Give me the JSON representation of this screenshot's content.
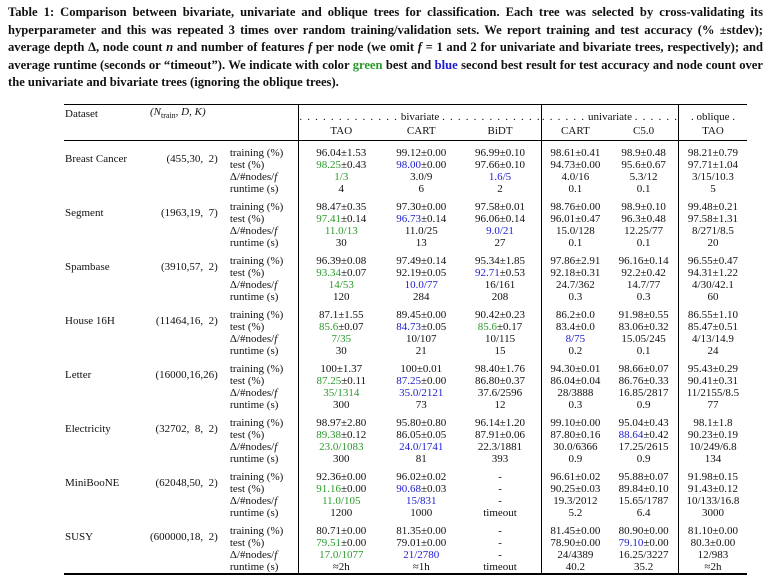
{
  "caption": {
    "parts": [
      "Table 1: Comparison between bivariate, univariate and oblique trees for classification. Each tree was selected by cross-validating its hyperparameter and this was repeated 3 times over random training/validation sets. We report training and test accuracy (% ±stdev); average depth Δ, node count ",
      "n",
      " and number of features ",
      "f",
      " per node (we omit ",
      "f",
      " = 1 and 2 for univariate and bivariate trees, respectively); and average runtime (seconds or “timeout”). We indicate with color ",
      "green",
      " best and ",
      "blue",
      " second best result for test accuracy and node count over the univariate and bivariate trees (ignoring the oblique trees)."
    ]
  },
  "colors": {
    "green": "#2a9a2a",
    "blue": "#1c1cd0"
  },
  "header": {
    "dataset": "Dataset",
    "params_prefix": "(N",
    "params_sub": "train",
    "params_suffix": ", D, K)",
    "groups": {
      "bivariate": "bivariate",
      "univariate": "univariate",
      "oblique": "oblique",
      "dots_long": ". . . . . . . . . . . . .",
      "dots_mid": ". . . . . .",
      "dots_short": "."
    },
    "columns": [
      "TAO",
      "CART",
      "BiDT",
      "CART",
      "C5.0",
      "TAO"
    ]
  },
  "row_labels": {
    "training": "training (%)",
    "test": "test (%)",
    "nodes": "Δ/#nodes/",
    "nodes_f": "f",
    "runtime": "runtime (s)"
  },
  "datasets": [
    {
      "name": "Breast Cancer",
      "params": "(455,30,  2)",
      "training": [
        "96.04±1.53",
        "99.12±0.00",
        "96.99±0.10",
        "98.61±0.41",
        "98.9±0.48",
        "98.21±0.79"
      ],
      "test": [
        "98.25±0.43",
        "98.00±0.00",
        "97.66±0.10",
        "94.73±0.00",
        "95.6±0.67",
        "97.71±1.04"
      ],
      "nodes": [
        "1/3",
        "3.0/9",
        "1.6/5",
        "4.0/16",
        "5.3/12",
        "3/15/10.3"
      ],
      "runtime": [
        "4",
        "6",
        "2",
        "0.1",
        "0.1",
        "5"
      ],
      "test_highlight": [
        "green",
        "blue",
        "",
        "",
        "",
        ""
      ],
      "nodes_highlight": [
        "green",
        "",
        "blue",
        "",
        "",
        ""
      ]
    },
    {
      "name": "Segment",
      "params": "(1963,19,  7)",
      "training": [
        "98.47±0.35",
        "97.30±0.00",
        "97.58±0.01",
        "98.76±0.00",
        "98.9±0.10",
        "99.48±0.21"
      ],
      "test": [
        "97.41±0.14",
        "96.73±0.14",
        "96.06±0.14",
        "96.01±0.47",
        "96.3±0.48",
        "97.58±1.31"
      ],
      "nodes": [
        "11.0/13",
        "11.0/25",
        "9.0/21",
        "15.0/128",
        "12.25/77",
        "8/271/8.5"
      ],
      "runtime": [
        "30",
        "13",
        "27",
        "0.1",
        "0.1",
        "20"
      ],
      "test_highlight": [
        "green",
        "blue",
        "",
        "",
        "",
        ""
      ],
      "nodes_highlight": [
        "green",
        "",
        "blue",
        "",
        "",
        ""
      ]
    },
    {
      "name": "Spambase",
      "params": "(3910,57,  2)",
      "training": [
        "96.39±0.08",
        "97.49±0.14",
        "95.34±1.85",
        "97.86±2.91",
        "96.16±0.14",
        "96.55±0.47"
      ],
      "test": [
        "93.34±0.07",
        "92.19±0.05",
        "92.71±0.53",
        "92.18±0.31",
        "92.2±0.42",
        "94.31±1.22"
      ],
      "nodes": [
        "14/53",
        "10.0/77",
        "16/161",
        "24.7/362",
        "14.7/77",
        "4/30/42.1"
      ],
      "runtime": [
        "120",
        "284",
        "208",
        "0.3",
        "0.3",
        "60"
      ],
      "test_highlight": [
        "green",
        "",
        "blue",
        "",
        "",
        ""
      ],
      "nodes_highlight": [
        "green",
        "blue",
        "",
        "",
        "",
        ""
      ]
    },
    {
      "name": "House 16H",
      "params": "(11464,16,  2)",
      "training": [
        "87.1±1.55",
        "89.45±0.00",
        "90.42±0.23",
        "86.2±0.0",
        "91.98±0.55",
        "86.55±1.10"
      ],
      "test": [
        "85.6±0.07",
        "84.73±0.05",
        "85.6±0.17",
        "83.4±0.0",
        "83.06±0.32",
        "85.47±0.51"
      ],
      "nodes": [
        "7/35",
        "10/107",
        "10/115",
        "8/75",
        "15.05/245",
        "4/13/14.9"
      ],
      "runtime": [
        "30",
        "21",
        "15",
        "0.2",
        "0.1",
        "24"
      ],
      "test_highlight": [
        "green",
        "blue",
        "green",
        "",
        "",
        ""
      ],
      "nodes_highlight": [
        "green",
        "",
        "",
        "blue",
        "",
        ""
      ]
    },
    {
      "name": "Letter",
      "params": "(16000,16,26)",
      "training": [
        "100±1.37",
        "100±0.01",
        "98.40±1.76",
        "94.30±0.01",
        "98.66±0.07",
        "95.43±0.29"
      ],
      "test": [
        "87.25±0.11",
        "87.25±0.00",
        "86.80±0.37",
        "86.04±0.04",
        "86.76±0.33",
        "90.41±0.31"
      ],
      "nodes": [
        "35/1314",
        "35.0/2121",
        "37.6/2596",
        "28/3888",
        "16.85/2817",
        "11/2155/8.5"
      ],
      "runtime": [
        "300",
        "73",
        "12",
        "0.3",
        "0.9",
        "77"
      ],
      "test_highlight": [
        "green",
        "blue",
        "",
        "",
        "",
        ""
      ],
      "nodes_highlight": [
        "green",
        "blue",
        "",
        "",
        "",
        ""
      ]
    },
    {
      "name": "Electricity",
      "params": "(32702,  8,  2)",
      "training": [
        "98.97±2.80",
        "95.80±0.80",
        "96.14±1.20",
        "99.10±0.00",
        "95.04±0.43",
        "98.1±1.8"
      ],
      "test": [
        "89.38±0.12",
        "86.05±0.05",
        "87.91±0.06",
        "87.80±0.16",
        "88.64±0.42",
        "90.23±0.19"
      ],
      "nodes": [
        "23.0/1083",
        "24.0/1741",
        "22.3/1881",
        "30.0/6366",
        "17.25/2615",
        "10/249/6.8"
      ],
      "runtime": [
        "300",
        "81",
        "393",
        "0.9",
        "0.9",
        "134"
      ],
      "test_highlight": [
        "green",
        "",
        "",
        "",
        "blue",
        ""
      ],
      "nodes_highlight": [
        "green",
        "blue",
        "",
        "",
        "",
        ""
      ]
    },
    {
      "name": "MiniBooNE",
      "params": "(62048,50,  2)",
      "training": [
        "92.36±0.00",
        "96.02±0.02",
        "-",
        "96.61±0.02",
        "95.88±0.07",
        "91.98±0.15"
      ],
      "test": [
        "91.16±0.00",
        "90.68±0.03",
        "-",
        "90.25±0.03",
        "89.84±0.10",
        "91.43±0.12"
      ],
      "nodes": [
        "11.0/105",
        "15/831",
        "-",
        "19.3/2012",
        "15.65/1787",
        "10/133/16.8"
      ],
      "runtime": [
        "1200",
        "1000",
        "timeout",
        "5.2",
        "6.4",
        "3000"
      ],
      "test_highlight": [
        "green",
        "blue",
        "",
        "",
        "",
        ""
      ],
      "nodes_highlight": [
        "green",
        "blue",
        "",
        "",
        "",
        ""
      ]
    },
    {
      "name": "SUSY",
      "params": "(600000,18,  2)",
      "training": [
        "80.71±0.00",
        "81.35±0.00",
        "-",
        "81.45±0.00",
        "80.90±0.00",
        "81.10±0.00"
      ],
      "test": [
        "79.51±0.00",
        "79.01±0.00",
        "-",
        "78.90±0.00",
        "79.10±0.00",
        "80.3±0.00"
      ],
      "nodes": [
        "17.0/1077",
        "21/2780",
        "-",
        "24/4389",
        "16.25/3227",
        "12/983"
      ],
      "runtime": [
        "≈2h",
        "≈1h",
        "timeout",
        "40.2",
        "35.2",
        "≈2h"
      ],
      "test_highlight": [
        "green",
        "",
        "",
        "",
        "blue",
        ""
      ],
      "nodes_highlight": [
        "green",
        "blue",
        "",
        "",
        "",
        ""
      ]
    }
  ]
}
